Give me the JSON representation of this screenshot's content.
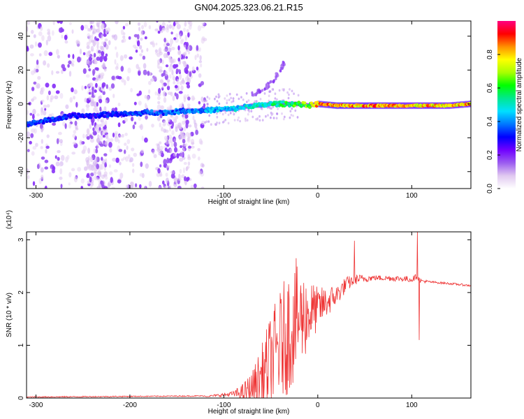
{
  "figure_title": "GN04.2025.323.06.21.R15",
  "chart_data": [
    {
      "type": "heatmap",
      "xlabel": "Height of straight line (km)",
      "ylabel": "Frequency (Hz)",
      "xlim": [
        -310,
        163
      ],
      "ylim": [
        -50,
        49
      ],
      "x_ticks": [
        -300,
        -200,
        -100,
        0,
        100
      ],
      "y_ticks": [
        -40,
        -20,
        0,
        20,
        40
      ],
      "x_tick_labels": [
        "-300",
        "-200",
        "-100",
        "0",
        "100"
      ],
      "y_tick_labels": [
        "-40",
        "-20",
        "0",
        "20",
        "40"
      ],
      "ridge_frequency": {
        "x": [
          -310,
          -300,
          -280,
          -260,
          -240,
          -220,
          -200,
          -180,
          -160,
          -140,
          -120,
          -100,
          -90,
          -80,
          -70,
          -60,
          -50,
          -40,
          -30,
          -20,
          -10,
          0,
          20,
          40,
          60,
          80,
          100,
          120,
          140,
          163
        ],
        "y": [
          -12,
          -11,
          -9,
          -7,
          -7,
          -6,
          -6,
          -5,
          -5,
          -4,
          -4,
          -3,
          -3,
          -2,
          -1,
          -1,
          0,
          0,
          0,
          0,
          -1,
          0,
          -1,
          -1,
          -1,
          -1,
          -1,
          -1,
          -1,
          0
        ]
      },
      "ridge_amplitude": {
        "x": [
          -310,
          -280,
          -250,
          -200,
          -150,
          -100,
          -70,
          -50,
          -30,
          -10,
          0,
          20,
          40,
          60,
          80,
          100,
          120,
          140,
          163
        ],
        "y": [
          0.35,
          0.35,
          0.3,
          0.35,
          0.4,
          0.45,
          0.5,
          0.55,
          0.6,
          0.7,
          0.85,
          0.9,
          0.85,
          0.9,
          0.85,
          0.8,
          0.85,
          0.8,
          0.85
        ]
      },
      "spur": {
        "x": [
          -70,
          -60,
          -50,
          -40,
          -35
        ],
        "y": [
          5,
          8,
          12,
          20,
          25
        ]
      },
      "colorbar": {
        "label": "Normalized spectral amplitude",
        "range": [
          0,
          1
        ],
        "ticks": [
          0,
          0.2,
          0.4,
          0.6,
          0.8
        ],
        "tick_labels": [
          "0.0",
          "0.2",
          "0.4",
          "0.6",
          "0.8"
        ],
        "colors": [
          "#ffffff",
          "#e0c8f0",
          "#9b5cf0",
          "#7000ff",
          "#0000ff",
          "#0078ff",
          "#00e0ff",
          "#00e890",
          "#00ff00",
          "#a8ff00",
          "#ffff00",
          "#ff9000",
          "#ff0000",
          "#ff0080"
        ]
      },
      "grid": false
    },
    {
      "type": "line",
      "xlabel": "Height of straight line (km)",
      "ylabel": "SNR (10 * v/v)",
      "scale_label": "(x10⁴)",
      "xlim": [
        -310,
        163
      ],
      "ylim": [
        0,
        3.15
      ],
      "x_ticks": [
        -300,
        -200,
        -100,
        0,
        100
      ],
      "y_ticks": [
        0,
        1,
        2,
        3
      ],
      "x_tick_labels": [
        "-300",
        "-200",
        "-100",
        "0",
        "100"
      ],
      "y_tick_labels": [
        "0",
        "1",
        "2",
        "3"
      ],
      "color": "#ee3333",
      "baseline": {
        "x": [
          -310,
          -120
        ],
        "y": [
          0.01,
          0.03
        ]
      },
      "envelope": {
        "x": [
          -120,
          -100,
          -80,
          -70,
          -60,
          -50,
          -40,
          -30,
          -20,
          0,
          20,
          30,
          40,
          60,
          80,
          100,
          105,
          110,
          120,
          140,
          163
        ],
        "y": [
          0.03,
          0.06,
          0.1,
          0.2,
          0.4,
          0.7,
          1.0,
          1.3,
          1.5,
          1.7,
          1.95,
          2.15,
          2.25,
          2.28,
          2.27,
          2.25,
          2.3,
          2.22,
          2.2,
          2.17,
          2.13
        ]
      },
      "noise_amplitude": {
        "x": [
          -120,
          -90,
          -70,
          -50,
          -30,
          -20,
          0,
          20,
          40,
          60,
          100,
          120,
          163
        ],
        "y": [
          0.01,
          0.05,
          0.3,
          0.9,
          1.2,
          1.0,
          0.4,
          0.2,
          0.1,
          0.05,
          0.06,
          0.02,
          0.02
        ]
      },
      "spikes": [
        {
          "x": -23,
          "y": 2.65
        },
        {
          "x": 39,
          "y": 2.98
        },
        {
          "x": 106,
          "y": 3.15
        },
        {
          "x": 108,
          "y": 1.1
        }
      ],
      "grid": false
    }
  ]
}
